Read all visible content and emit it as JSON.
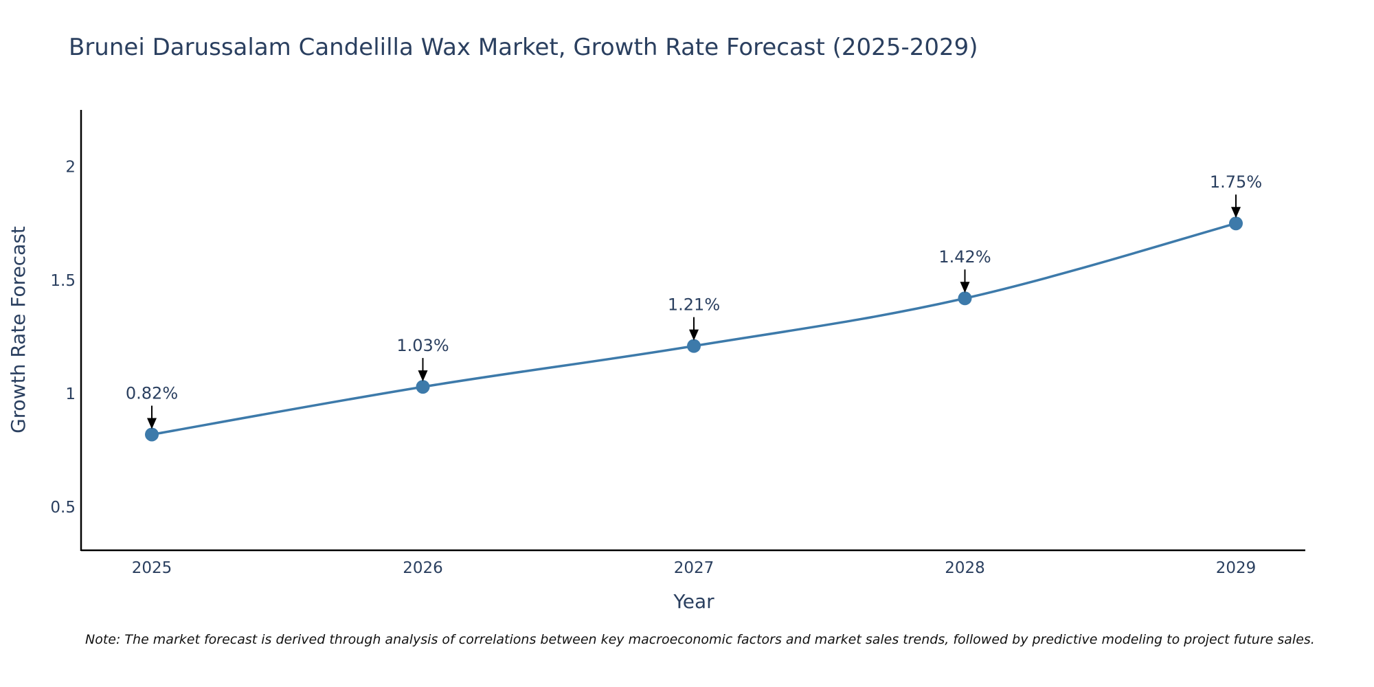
{
  "chart_data": {
    "type": "line",
    "title": "Brunei Darussalam Candelilla Wax Market, Growth Rate Forecast (2025-2029)",
    "xlabel": "Year",
    "ylabel": "Growth Rate Forecast",
    "categories": [
      "2025",
      "2026",
      "2027",
      "2028",
      "2029"
    ],
    "series": [
      {
        "name": "Growth Rate Forecast",
        "values": [
          0.82,
          1.03,
          1.21,
          1.42,
          1.75
        ],
        "data_labels": [
          "0.82%",
          "1.03%",
          "1.21%",
          "1.42%",
          "1.75%"
        ],
        "color": "#3d7aaa"
      }
    ],
    "ylim": [
      0.31,
      2.25
    ],
    "yticks": [
      0.5,
      1,
      1.5,
      2
    ],
    "ytick_labels": [
      "0.5",
      "1",
      "1.5",
      "2"
    ],
    "grid": false,
    "legend": "none"
  },
  "note": "Note: The market forecast is derived through analysis of correlations between key macroeconomic factors and market sales trends, followed by predictive modeling to project future sales.",
  "colors": {
    "line": "#3d7aaa",
    "marker": "#3d7aaa",
    "text": "#2a3f5f",
    "axis": "#000000",
    "arrow": "#000000"
  }
}
